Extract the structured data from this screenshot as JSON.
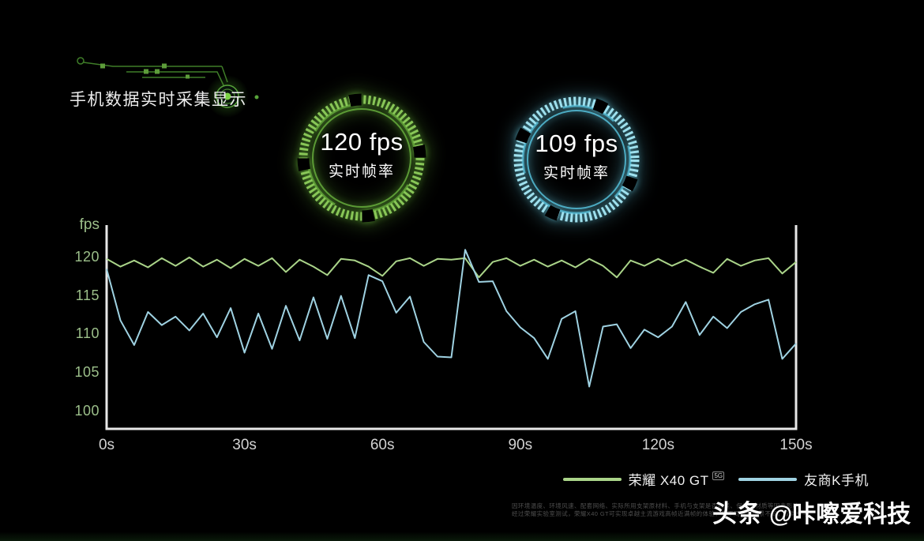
{
  "page": {
    "background": "#000000"
  },
  "header": {
    "title": "手机数据实时采集显示"
  },
  "gauges": [
    {
      "id": "honor",
      "value": "120 fps",
      "label": "实时帧率",
      "ring_color": "#66ab3c",
      "tick_color": "#8ecd5c",
      "glow_color": "rgba(118,205,66,0.55)"
    },
    {
      "id": "rival",
      "value": "109 fps",
      "label": "实时帧率",
      "ring_color": "#55bed8",
      "tick_color": "#a5e9f7",
      "glow_color": "rgba(110,215,240,0.55)"
    }
  ],
  "chart_data": {
    "type": "line",
    "title": "",
    "xlabel": "",
    "ylabel": "fps",
    "xlim": [
      0,
      150
    ],
    "ylim": [
      97.7,
      124.2
    ],
    "grid": false,
    "legend_position": "bottom-right",
    "axis_color": "#e8e8e8",
    "y_tick_color": "#9cbf8a",
    "x_tick_color": "#d2d2d2",
    "y_ticks": [
      120,
      115,
      110,
      105,
      100
    ],
    "x_tick_values": [
      0,
      30,
      60,
      90,
      120,
      150
    ],
    "x_ticks": [
      "0s",
      "30s",
      "60s",
      "90s",
      "120s",
      "150s"
    ],
    "x": [
      0,
      3,
      6,
      9,
      12,
      15,
      18,
      21,
      24,
      27,
      30,
      33,
      36,
      39,
      42,
      45,
      48,
      51,
      54,
      57,
      60,
      63,
      66,
      69,
      72,
      75,
      78,
      81,
      84,
      87,
      90,
      93,
      96,
      99,
      102,
      105,
      108,
      111,
      114,
      117,
      120,
      123,
      126,
      129,
      132,
      135,
      138,
      141,
      144,
      147,
      150
    ],
    "series": [
      {
        "name": "荣耀 X40 GT",
        "badge": "5G",
        "color": "#aad489",
        "values": [
          119.8,
          118.8,
          119.6,
          118.7,
          119.9,
          118.9,
          120.0,
          118.8,
          119.7,
          118.6,
          119.8,
          118.9,
          119.9,
          118.1,
          119.7,
          118.8,
          117.7,
          119.8,
          119.6,
          118.8,
          117.6,
          119.5,
          119.9,
          118.9,
          119.8,
          119.7,
          119.9,
          117.4,
          119.4,
          119.9,
          118.9,
          119.7,
          118.8,
          119.6,
          118.7,
          119.8,
          118.9,
          117.4,
          119.6,
          118.9,
          119.8,
          118.9,
          119.7,
          118.8,
          118.0,
          119.8,
          118.9,
          119.6,
          119.9,
          117.9,
          119.4
        ]
      },
      {
        "name": "友商K手机",
        "badge": "",
        "color": "#9fd2e2",
        "values": [
          118.5,
          111.8,
          108.6,
          112.9,
          111.2,
          112.3,
          110.5,
          112.7,
          109.6,
          113.4,
          107.6,
          112.7,
          108.1,
          113.7,
          109.2,
          114.8,
          109.4,
          115.0,
          109.5,
          117.7,
          116.9,
          112.8,
          114.9,
          109.0,
          107.1,
          107.0,
          121.0,
          116.8,
          116.9,
          113.0,
          110.9,
          109.5,
          106.8,
          112.0,
          113.0,
          103.2,
          111.0,
          111.3,
          108.2,
          110.6,
          109.6,
          111.0,
          114.2,
          109.9,
          112.3,
          110.8,
          112.9,
          113.9,
          114.5,
          106.8,
          108.8
        ]
      }
    ]
  },
  "footer": {
    "disclaimer_line1": "因环境温度、环境风速、配套网络、实际所用支架原材料、手机与支架是否触紧、保护壳材质等因素影响，",
    "disclaimer_line2": "经过荣耀实验室测试，荣耀X40 GT可实现卓越主流游戏高帧近满帧的体验，但不同游戏场景不同，仅供参考。",
    "watermark_brand": "头条",
    "watermark_handle": "@咔嚓爱科技"
  }
}
